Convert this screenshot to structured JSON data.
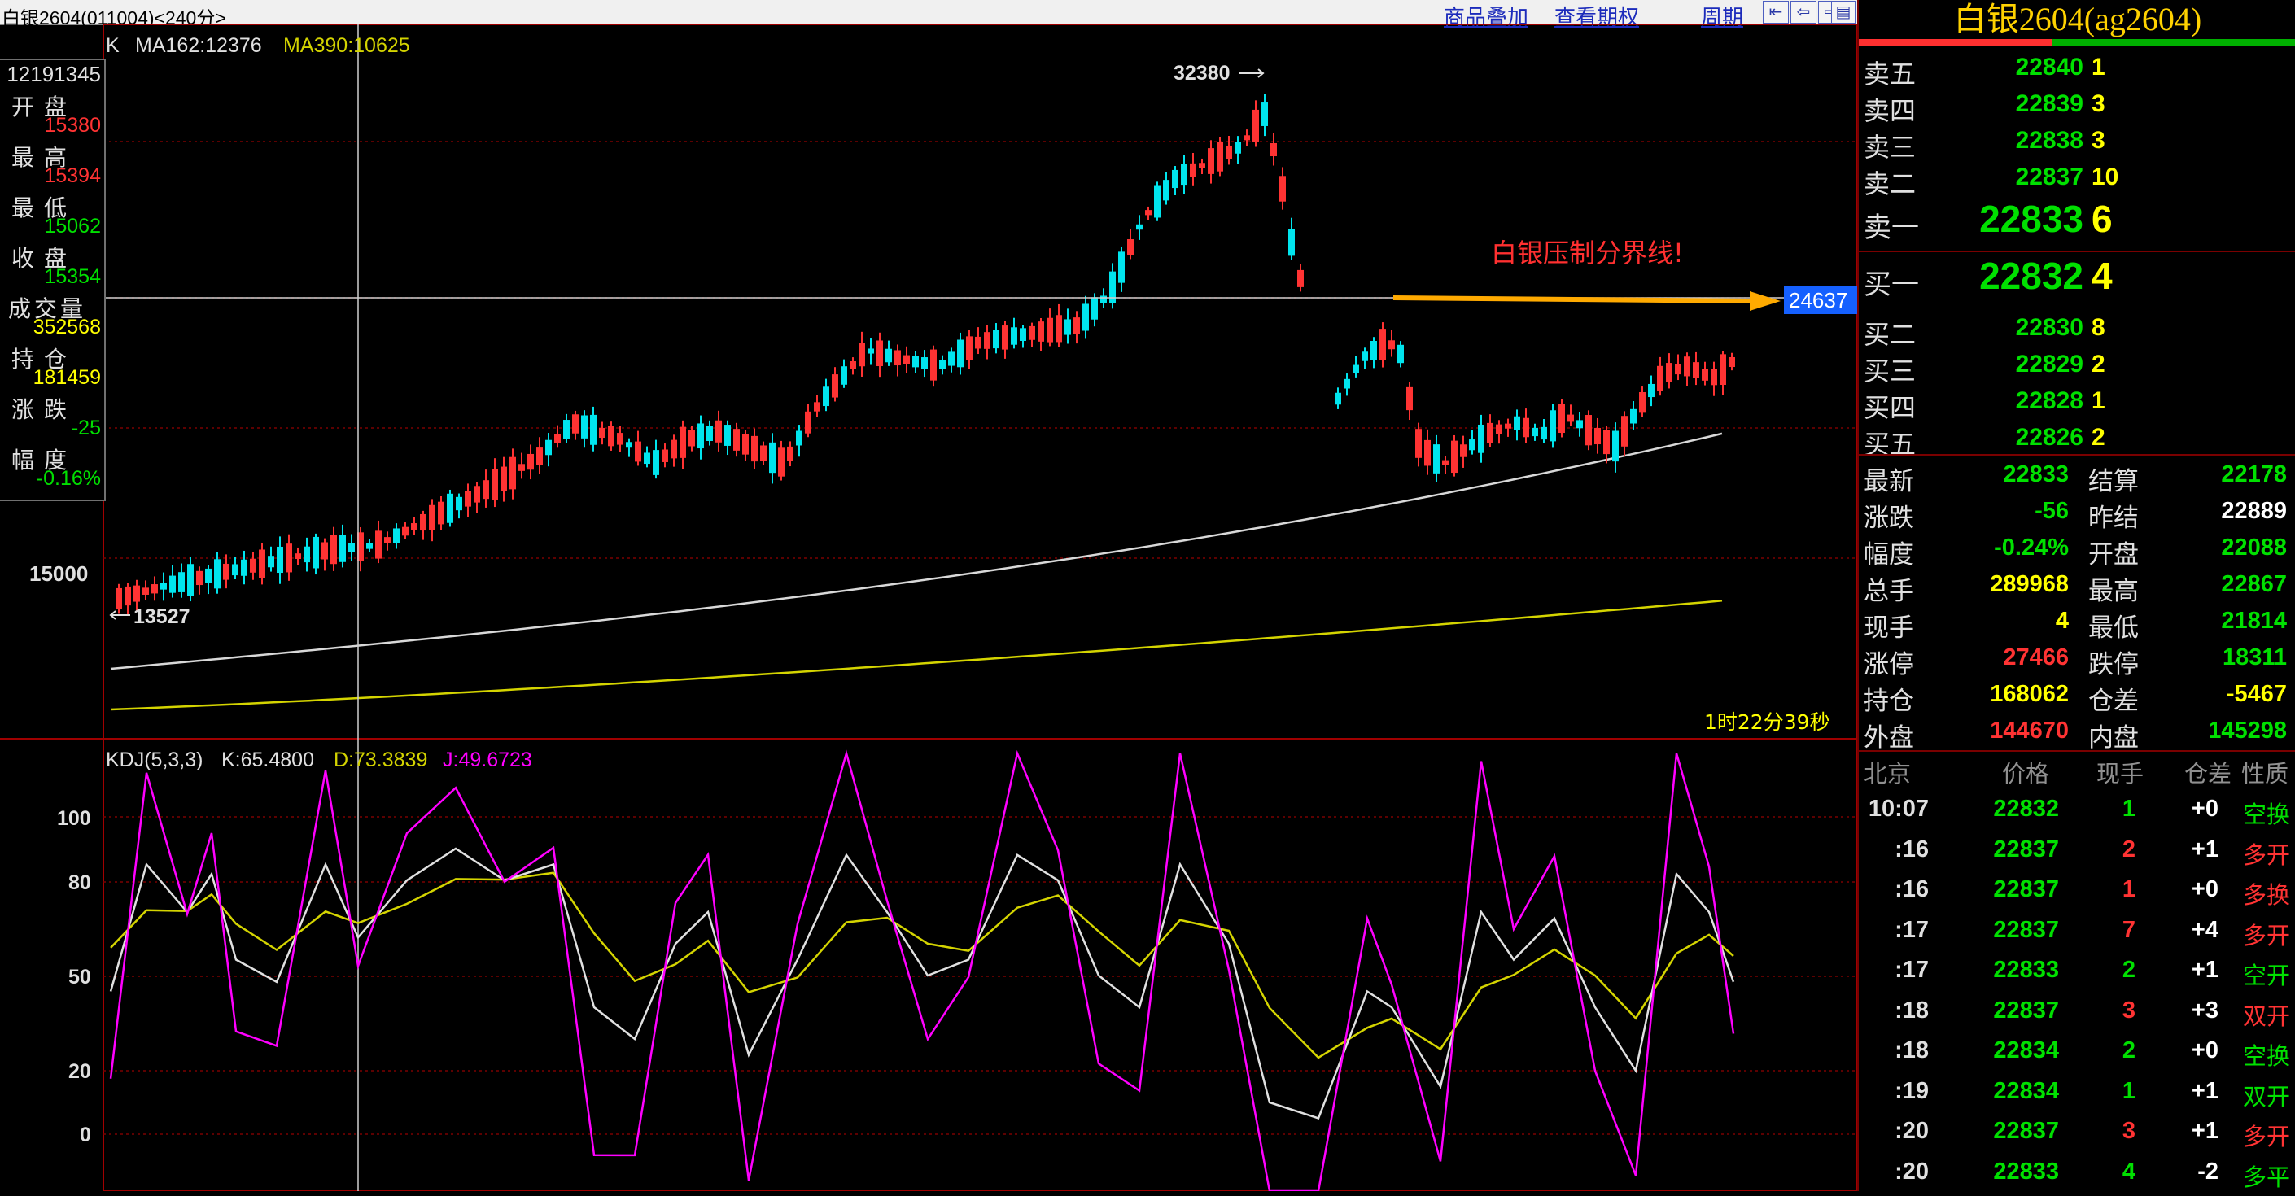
{
  "window": {
    "title": "白银2604(011004)<240分>",
    "links": [
      "商品叠加",
      "查看期权",
      "周期"
    ],
    "nav_icons": [
      "first-page-icon",
      "prev-page-icon",
      "next-page-icon",
      "layout-icon"
    ]
  },
  "main_chart": {
    "ma_header": {
      "prefix": "K",
      "ma162": "MA162:12376",
      "ma390": "MA390:10625"
    },
    "price_axis_label": "15000",
    "high_marker": "32380",
    "low_marker": "13527",
    "crosshair_price": "24637",
    "annotation": "白银压制分界线!",
    "countdown": "1时22分39秒",
    "colors": {
      "up": "#ff3333",
      "down": "#00e5ee",
      "ma162": "#d8d8d8",
      "ma390": "#d4d400",
      "annotation": "#ff3030",
      "arrow": "#ffaa00"
    }
  },
  "left_info": {
    "time": "12191345",
    "items": [
      {
        "label": "开盘",
        "value": "15380",
        "color": "#ff3333"
      },
      {
        "label": "最高",
        "value": "15394",
        "color": "#ff3333"
      },
      {
        "label": "最低",
        "value": "15062",
        "color": "#00e000"
      },
      {
        "label": "收盘",
        "value": "15354",
        "color": "#00e000"
      },
      {
        "label": "成交量",
        "value": "352568",
        "color": "#ffff00"
      },
      {
        "label": "持仓",
        "value": "181459",
        "color": "#ffff00"
      },
      {
        "label": "涨跌",
        "value": "-25",
        "color": "#00e000"
      },
      {
        "label": "幅度",
        "value": "-0.16%",
        "color": "#00e000"
      }
    ]
  },
  "kdj": {
    "header": {
      "name": "KDJ(5,3,3)",
      "k": "K:65.4800",
      "d": "D:73.3839",
      "j": "J:49.6723"
    },
    "axis_labels": [
      "100",
      "80",
      "50",
      "20",
      "0"
    ],
    "colors": {
      "k": "#e0e0e0",
      "d": "#d4d400",
      "j": "#ff00ff"
    }
  },
  "quote_panel": {
    "title": "白银2604(ag2604)",
    "asks": [
      {
        "label": "卖五",
        "price": "22840",
        "vol": "1"
      },
      {
        "label": "卖四",
        "price": "22839",
        "vol": "3"
      },
      {
        "label": "卖三",
        "price": "22838",
        "vol": "3"
      },
      {
        "label": "卖二",
        "price": "22837",
        "vol": "10"
      },
      {
        "label": "卖一",
        "price": "22833",
        "vol": "6"
      }
    ],
    "bids": [
      {
        "label": "买一",
        "price": "22832",
        "vol": "4"
      },
      {
        "label": "买二",
        "price": "22830",
        "vol": "8"
      },
      {
        "label": "买三",
        "price": "22829",
        "vol": "2"
      },
      {
        "label": "买四",
        "price": "22828",
        "vol": "1"
      },
      {
        "label": "买五",
        "price": "22826",
        "vol": "2"
      }
    ],
    "stats": [
      {
        "l1": "最新",
        "v1": "22833",
        "c1": "#00e000",
        "l2": "结算",
        "v2": "22178",
        "c2": "#00e000"
      },
      {
        "l1": "涨跌",
        "v1": "-56",
        "c1": "#00e000",
        "l2": "昨结",
        "v2": "22889",
        "c2": "#ffffff"
      },
      {
        "l1": "幅度",
        "v1": "-0.24%",
        "c1": "#00e000",
        "l2": "开盘",
        "v2": "22088",
        "c2": "#00e000"
      },
      {
        "l1": "总手",
        "v1": "289968",
        "c1": "#ffff00",
        "l2": "最高",
        "v2": "22867",
        "c2": "#00e000"
      },
      {
        "l1": "现手",
        "v1": "4",
        "c1": "#ffff00",
        "l2": "最低",
        "v2": "21814",
        "c2": "#00e000"
      },
      {
        "l1": "涨停",
        "v1": "27466",
        "c1": "#ff3333",
        "l2": "跌停",
        "v2": "18311",
        "c2": "#00e000"
      },
      {
        "l1": "持仓",
        "v1": "168062",
        "c1": "#ffff00",
        "l2": "仓差",
        "v2": "-5467",
        "c2": "#ffff00"
      },
      {
        "l1": "外盘",
        "v1": "144670",
        "c1": "#ff3333",
        "l2": "内盘",
        "v2": "145298",
        "c2": "#00e000"
      }
    ],
    "ticks_header": [
      "北京",
      "价格",
      "现手",
      "仓差",
      "性质"
    ],
    "ticks": [
      {
        "time": "10:07",
        "price": "22832",
        "vol": "1",
        "vc": "#00e000",
        "chg": "+0",
        "type": "空换",
        "tc": "#00e000"
      },
      {
        "time": ":16",
        "price": "22837",
        "vol": "2",
        "vc": "#ff3333",
        "chg": "+1",
        "type": "多开",
        "tc": "#ff3333"
      },
      {
        "time": ":16",
        "price": "22837",
        "vol": "1",
        "vc": "#ff3333",
        "chg": "+0",
        "type": "多换",
        "tc": "#ff3333"
      },
      {
        "time": ":17",
        "price": "22837",
        "vol": "7",
        "vc": "#ff3333",
        "chg": "+4",
        "type": "多开",
        "tc": "#ff3333"
      },
      {
        "time": ":17",
        "price": "22833",
        "vol": "2",
        "vc": "#00e000",
        "chg": "+1",
        "type": "空开",
        "tc": "#00e000"
      },
      {
        "time": ":18",
        "price": "22837",
        "vol": "3",
        "vc": "#ff3333",
        "chg": "+3",
        "type": "双开",
        "tc": "#ff3333"
      },
      {
        "time": ":18",
        "price": "22834",
        "vol": "2",
        "vc": "#00e000",
        "chg": "+0",
        "type": "空换",
        "tc": "#00e000"
      },
      {
        "time": ":19",
        "price": "22834",
        "vol": "1",
        "vc": "#00e000",
        "chg": "+1",
        "type": "双开",
        "tc": "#00e000"
      },
      {
        "time": ":20",
        "price": "22837",
        "vol": "3",
        "vc": "#ff3333",
        "chg": "+1",
        "type": "多开",
        "tc": "#ff3333"
      },
      {
        "time": ":20",
        "price": "22833",
        "vol": "4",
        "vc": "#00e000",
        "chg": "-2",
        "type": "多平",
        "tc": "#00e000"
      }
    ]
  }
}
